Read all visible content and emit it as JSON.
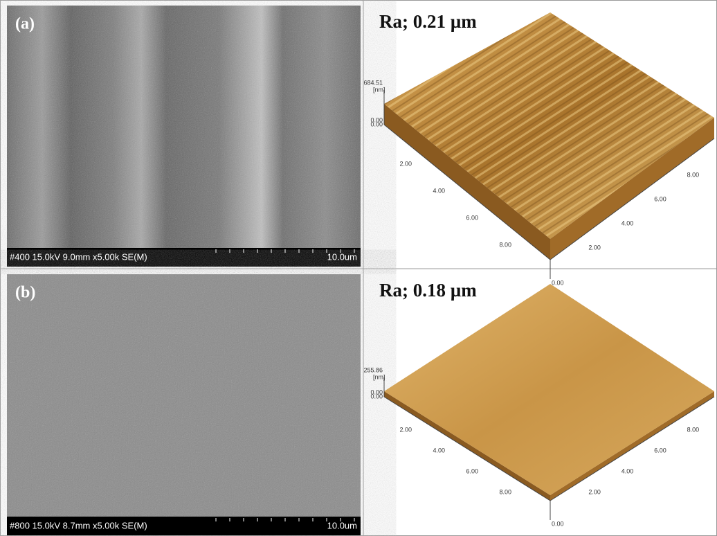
{
  "panels": [
    {
      "label": "(a)",
      "sem": {
        "info": "#400 15.0kV 9.0mm x5.00k SE(M)",
        "scale": "10.0um"
      },
      "afm": {
        "ra": "Ra; 0.21 µm",
        "zmax": "684.51",
        "zunit": "[nm]",
        "zmin": "0.00",
        "xticks": [
          "0.00",
          "2.00",
          "4.00",
          "6.00",
          "8.00"
        ],
        "yticks": [
          "0.00",
          "2.00",
          "4.00",
          "6.00",
          "8.00"
        ]
      }
    },
    {
      "label": "(b)",
      "sem": {
        "info": "#800 15.0kV 8.7mm x5.00k SE(M)",
        "scale": "10.0um"
      },
      "afm": {
        "ra": "Ra; 0.18 µm",
        "zmax": "255.86",
        "zunit": "[nm]",
        "zmin": "0.00",
        "xticks": [
          "0.00",
          "2.00",
          "4.00",
          "6.00",
          "8.00"
        ],
        "yticks": [
          "0.00",
          "2.00",
          "4.00",
          "6.00",
          "8.00"
        ]
      }
    }
  ]
}
